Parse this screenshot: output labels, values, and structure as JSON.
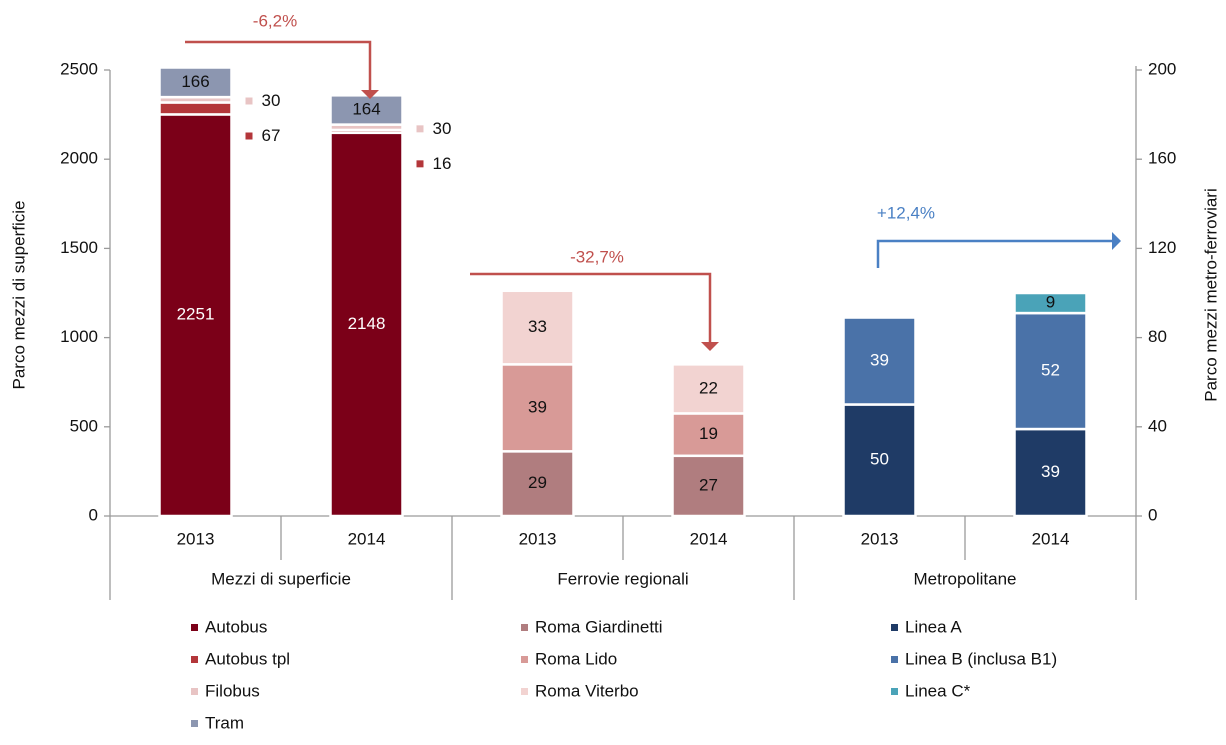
{
  "chart_data": {
    "type": "stacked-bar",
    "y_label": "Parco mezzi di superficie",
    "y2_label": "Parco mezzi metro-ferroviari",
    "categories": [
      "2013",
      "2014",
      "2013",
      "2014",
      "2013",
      "2014"
    ],
    "groups": [
      "Mezzi di superficie",
      "Ferrovie regionali",
      "Metropolitane"
    ],
    "ylim": [
      0,
      2500
    ],
    "yticks": [
      0,
      500,
      1000,
      1500,
      2000,
      2500
    ],
    "y2lim": [
      0,
      200
    ],
    "y2ticks": [
      0,
      40,
      80,
      120,
      160,
      200
    ],
    "series": [
      {
        "name": "Autobus",
        "color": "#7b0018",
        "values": [
          2251,
          2148,
          null,
          null,
          null,
          null
        ]
      },
      {
        "name": "Autobus tpl",
        "color": "#b3363a",
        "values": [
          67,
          16,
          null,
          null,
          null,
          null
        ]
      },
      {
        "name": "Filobus",
        "color": "#e8c4c4",
        "values": [
          30,
          30,
          null,
          null,
          null,
          null
        ]
      },
      {
        "name": "Tram",
        "color": "#8c96b0",
        "values": [
          166,
          164,
          null,
          null,
          null,
          null
        ]
      },
      {
        "name": "Roma Giardinetti",
        "color": "#b07d7f",
        "axis": "y2",
        "values": [
          null,
          null,
          29,
          27,
          null,
          null
        ]
      },
      {
        "name": "Roma Lido",
        "color": "#d89a97",
        "axis": "y2",
        "values": [
          null,
          null,
          39,
          19,
          null,
          null
        ]
      },
      {
        "name": "Roma Viterbo",
        "color": "#f2d3d1",
        "axis": "y2",
        "values": [
          null,
          null,
          33,
          22,
          null,
          null
        ]
      },
      {
        "name": "Linea A",
        "color": "#1f3b66",
        "axis": "y2",
        "values": [
          null,
          null,
          null,
          null,
          50,
          39
        ]
      },
      {
        "name": "Linea B (inclusa B1)",
        "color": "#4a72a8",
        "axis": "y2",
        "values": [
          null,
          null,
          null,
          null,
          39,
          52
        ]
      },
      {
        "name": "Linea C*",
        "color": "#4aa3b8",
        "axis": "y2",
        "values": [
          null,
          null,
          null,
          null,
          null,
          9
        ]
      }
    ],
    "annotations": [
      {
        "text": "-6,2%",
        "color": "#c0504d"
      },
      {
        "text": "-32,7%",
        "color": "#c0504d"
      },
      {
        "text": "+12,4%",
        "color": "#4a80c4"
      }
    ]
  }
}
